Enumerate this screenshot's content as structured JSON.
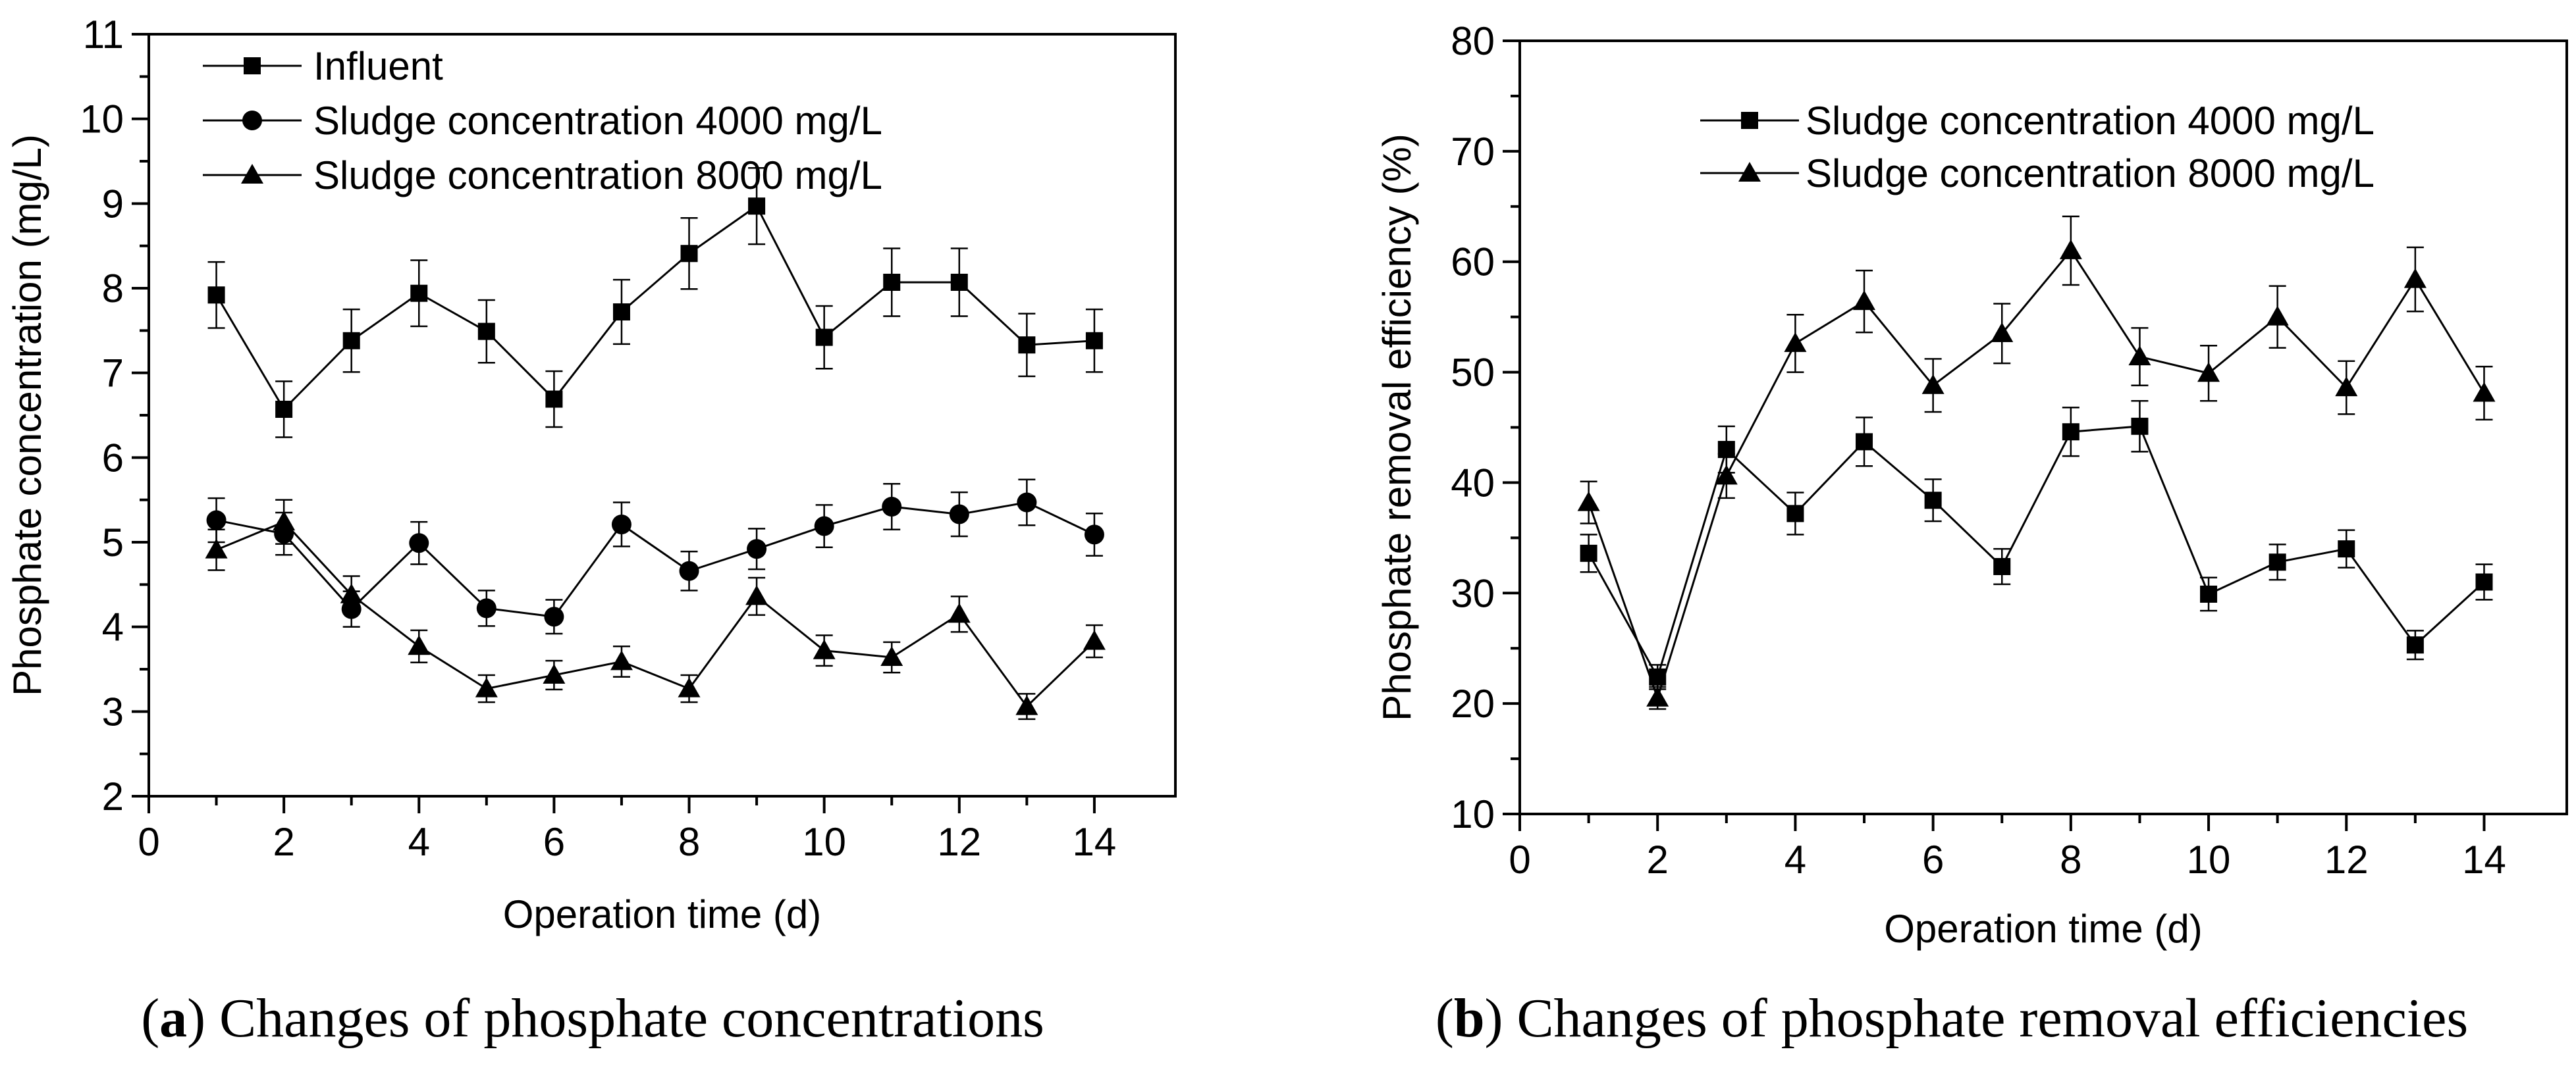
{
  "colors": {
    "ink": "#000000",
    "background": "#ffffff"
  },
  "chart_data": [
    {
      "type": "line",
      "panel": "a",
      "caption_letter": "a",
      "caption_text": ") Changes of phosphate concentrations",
      "caption_open": "(",
      "xlabel": "Operation time (d)",
      "ylabel": "Phosphate concentration (mg/L)",
      "xlim": [
        0,
        15.2
      ],
      "ylim": [
        2,
        11
      ],
      "xticks": [
        "0",
        "2",
        "4",
        "6",
        "8",
        "10",
        "12",
        "14"
      ],
      "yticks": [
        "2",
        "3",
        "4",
        "5",
        "6",
        "7",
        "8",
        "9",
        "10",
        "11"
      ],
      "legend_position": "top-left",
      "x": [
        1,
        2,
        3,
        4,
        5,
        6,
        7,
        8,
        9,
        10,
        11,
        12,
        13,
        14
      ],
      "series": [
        {
          "name": "Influent",
          "marker": "square",
          "values": [
            7.92,
            6.57,
            7.38,
            7.94,
            7.49,
            6.69,
            7.72,
            8.41,
            8.97,
            7.42,
            8.07,
            8.07,
            7.33,
            7.38
          ],
          "errors": [
            0.39,
            0.33,
            0.37,
            0.39,
            0.37,
            0.33,
            0.38,
            0.42,
            0.45,
            0.37,
            0.4,
            0.4,
            0.37,
            0.37
          ]
        },
        {
          "name": "Sludge concentration 4000 mg/L",
          "marker": "circle",
          "values": [
            5.26,
            5.1,
            4.21,
            4.99,
            4.22,
            4.12,
            5.21,
            4.66,
            4.92,
            5.19,
            5.42,
            5.33,
            5.47,
            5.09
          ],
          "errors": [
            0.26,
            0.25,
            0.21,
            0.25,
            0.21,
            0.2,
            0.26,
            0.23,
            0.24,
            0.25,
            0.27,
            0.26,
            0.27,
            0.25
          ]
        },
        {
          "name": "Sludge concentration 8000 mg/L",
          "marker": "triangle",
          "values": [
            4.91,
            5.24,
            4.38,
            3.77,
            3.27,
            3.43,
            3.59,
            3.27,
            4.36,
            3.72,
            3.64,
            4.15,
            3.06,
            3.83
          ],
          "errors": [
            0.24,
            0.26,
            0.22,
            0.19,
            0.16,
            0.17,
            0.18,
            0.16,
            0.22,
            0.18,
            0.18,
            0.21,
            0.15,
            0.19
          ]
        }
      ]
    },
    {
      "type": "line",
      "panel": "b",
      "caption_letter": "b",
      "caption_text": ") Changes of phosphate removal efficiencies",
      "caption_open": "(",
      "xlabel": "Operation time (d)",
      "ylabel": "Phosphate removal efficiency (%)",
      "xlim": [
        0,
        15.2
      ],
      "ylim": [
        10,
        80
      ],
      "xticks": [
        "0",
        "2",
        "4",
        "6",
        "8",
        "10",
        "12",
        "14"
      ],
      "yticks": [
        "10",
        "20",
        "30",
        "40",
        "50",
        "60",
        "70",
        "80"
      ],
      "legend_position": "top-center",
      "x": [
        1,
        2,
        3,
        4,
        5,
        6,
        7,
        8,
        9,
        10,
        11,
        12,
        13,
        14
      ],
      "series": [
        {
          "name": "Sludge concentration 4000 mg/L",
          "marker": "square",
          "values": [
            33.6,
            22.4,
            43.0,
            37.2,
            43.7,
            38.4,
            32.4,
            44.6,
            45.1,
            29.9,
            32.8,
            34.0,
            25.3,
            31.0
          ],
          "errors": [
            1.7,
            1.1,
            2.1,
            1.9,
            2.2,
            1.9,
            1.6,
            2.2,
            2.3,
            1.5,
            1.6,
            1.7,
            1.3,
            1.6
          ]
        },
        {
          "name": "Sludge concentration 8000 mg/L",
          "marker": "triangle",
          "values": [
            38.2,
            20.5,
            40.6,
            52.6,
            56.4,
            48.8,
            53.5,
            61.0,
            51.4,
            49.9,
            55.0,
            48.6,
            58.4,
            48.1
          ],
          "errors": [
            1.9,
            1.0,
            2.0,
            2.6,
            2.8,
            2.4,
            2.7,
            3.1,
            2.6,
            2.5,
            2.8,
            2.4,
            2.9,
            2.4
          ]
        }
      ]
    }
  ]
}
